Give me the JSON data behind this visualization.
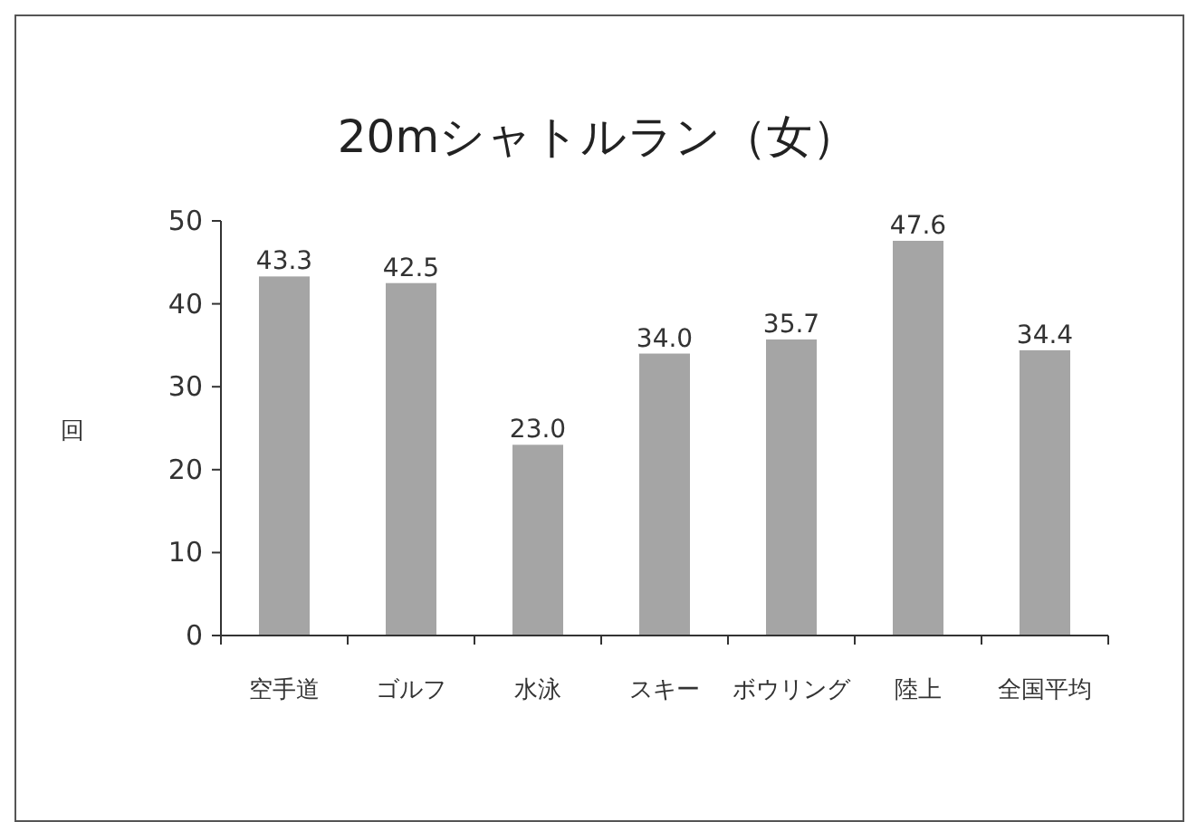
{
  "chart_data": {
    "type": "bar",
    "title": "20mシャトルラン（女）",
    "ylabel": "回",
    "categories": [
      "空手道",
      "ゴルフ",
      "水泳",
      "スキー",
      "ボウリング",
      "陸上",
      "全国平均"
    ],
    "values": [
      43.3,
      42.5,
      23.0,
      34.0,
      35.7,
      47.6,
      34.4
    ],
    "value_labels": [
      "43.3",
      "42.5",
      "23.0",
      "34.0",
      "35.7",
      "47.6",
      "34.4"
    ],
    "color": "#a5a5a5",
    "ylim": [
      0,
      50
    ],
    "yticks": [
      0,
      10,
      20,
      30,
      40,
      50
    ]
  }
}
